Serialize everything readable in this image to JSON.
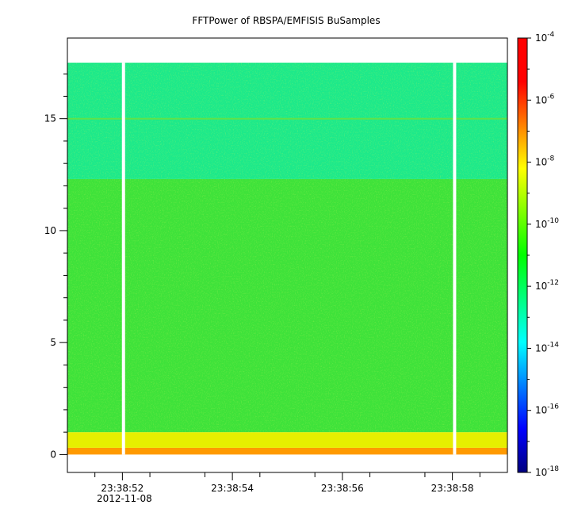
{
  "chart_data": {
    "type": "heatmap",
    "title": "FFTPower of RBSPA/EMFISIS  BuSamples",
    "xlabel": "",
    "ylabel": "",
    "x_ticks": [
      {
        "label": "23:38:52",
        "t": 2
      },
      {
        "label": "23:38:54",
        "t": 4
      },
      {
        "label": "23:38:56",
        "t": 6
      },
      {
        "label": "23:38:58",
        "t": 8
      }
    ],
    "x_date_label": "2012-11-08",
    "x_start_label": "23:38:51",
    "x_end_label": "23:38:59",
    "y_ticks": [
      0,
      5,
      10,
      15
    ],
    "ylim": [
      -0.8,
      18.6
    ],
    "colorbar": {
      "scale": "log",
      "range": [
        1e-18,
        0.0001
      ],
      "ticks": [
        {
          "base": "10",
          "exp": "-18"
        },
        {
          "base": "10",
          "exp": "-16"
        },
        {
          "base": "10",
          "exp": "-14"
        },
        {
          "base": "10",
          "exp": "-12"
        },
        {
          "base": "10",
          "exp": "-10"
        },
        {
          "base": "10",
          "exp": "-8"
        },
        {
          "base": "10",
          "exp": "-6"
        },
        {
          "base": "10",
          "exp": "-4"
        }
      ],
      "colors": [
        "#00007f",
        "#0000ff",
        "#007fff",
        "#00ffff",
        "#00ff80",
        "#00ff00",
        "#80ff00",
        "#ffff00",
        "#ff8000",
        "#ff0000",
        "#ff0000"
      ]
    },
    "data_gaps": [
      "23:38:52",
      "23:38:58"
    ],
    "bands": [
      {
        "y_range": [
          0,
          0.3
        ],
        "description": "orange",
        "color": "#ff9a00"
      },
      {
        "y_range": [
          0.3,
          1.0
        ],
        "description": "yellow",
        "color": "#e6ef00"
      },
      {
        "y_range": [
          1.0,
          12.3
        ],
        "description": "green",
        "color": "#3ee23a"
      },
      {
        "y_range": [
          12.3,
          17.5
        ],
        "description": "cyan-green",
        "color": "#1de98a"
      }
    ],
    "grid": false
  }
}
